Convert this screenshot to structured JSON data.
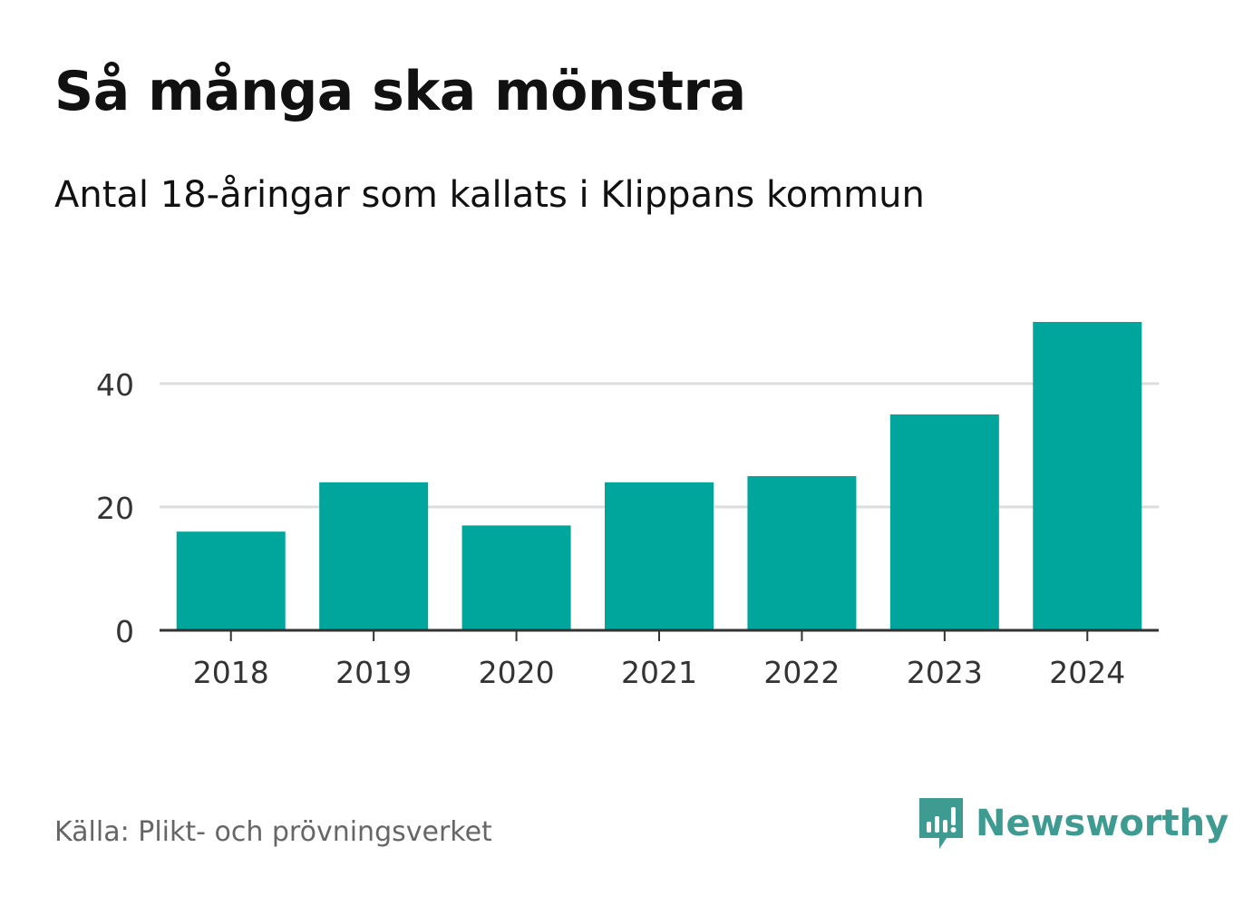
{
  "title": "Så många ska mönstra",
  "subtitle": "Antal 18-åringar som kallats i Klippans kommun",
  "source": "Källa: Plikt- och prövningsverket",
  "brand": {
    "name": "Newsworthy",
    "icon": "newsworthy-logo-icon",
    "color": "#3d9b92"
  },
  "colors": {
    "bar": "#00a59b",
    "grid": "#dddddd",
    "axis": "#333333",
    "text": "#333333"
  },
  "chart_data": {
    "type": "bar",
    "title": "Så många ska mönstra",
    "subtitle": "Antal 18-åringar som kallats i Klippans kommun",
    "xlabel": "",
    "ylabel": "",
    "categories": [
      "2018",
      "2019",
      "2020",
      "2021",
      "2022",
      "2023",
      "2024"
    ],
    "values": [
      16,
      24,
      17,
      24,
      25,
      35,
      50
    ],
    "ylim": [
      0,
      50
    ],
    "yticks": [
      0,
      20,
      40
    ],
    "grid": true,
    "legend": "none"
  }
}
